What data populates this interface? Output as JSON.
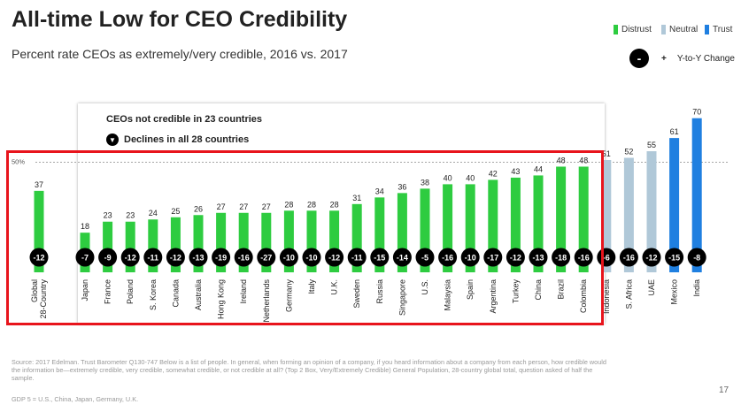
{
  "chart_data": {
    "type": "bar",
    "title": "All-time Low for CEO Credibility",
    "subtitle": "Percent rate CEOs as extremely/very credible, 2016 vs. 2017",
    "categories": [
      "Global 28-Country",
      "Japan",
      "France",
      "Poland",
      "S. Korea",
      "Canada",
      "Australia",
      "Hong Kong",
      "Ireland",
      "Netherlands",
      "Germany",
      "Italy",
      "U.K.",
      "Sweden",
      "Russia",
      "Singapore",
      "U.S.",
      "Malaysia",
      "Spain",
      "Argentina",
      "Turkey",
      "China",
      "Brazil",
      "Colombia",
      "Indonesia",
      "S. Africa",
      "UAE",
      "Mexico",
      "India"
    ],
    "values": [
      37,
      18,
      23,
      23,
      24,
      25,
      26,
      27,
      27,
      27,
      28,
      28,
      28,
      31,
      34,
      36,
      38,
      40,
      40,
      42,
      43,
      44,
      48,
      48,
      51,
      52,
      55,
      61,
      70
    ],
    "yoy_change": [
      -12,
      -7,
      -9,
      -12,
      -11,
      -12,
      -13,
      -19,
      -16,
      -27,
      -10,
      -10,
      -12,
      -11,
      -15,
      -14,
      -5,
      -16,
      -10,
      -17,
      -12,
      -13,
      -18,
      -16,
      -6,
      -16,
      -12,
      -15,
      -8
    ],
    "trust_level": [
      "distrust",
      "distrust",
      "distrust",
      "distrust",
      "distrust",
      "distrust",
      "distrust",
      "distrust",
      "distrust",
      "distrust",
      "distrust",
      "distrust",
      "distrust",
      "distrust",
      "distrust",
      "distrust",
      "distrust",
      "distrust",
      "distrust",
      "distrust",
      "distrust",
      "distrust",
      "distrust",
      "distrust",
      "neutral",
      "neutral",
      "neutral",
      "trust",
      "trust"
    ],
    "reference_line": {
      "value": 50,
      "label": "50%"
    },
    "ylim": [
      0,
      75
    ],
    "xlabel": "",
    "ylabel": "",
    "legend": [
      {
        "key": "distrust",
        "label": "Distrust",
        "color": "#2ecc40"
      },
      {
        "key": "neutral",
        "label": "Neutral",
        "color": "#b0c8d8"
      },
      {
        "key": "trust",
        "label": "Trust",
        "color": "#1f7fe0"
      }
    ],
    "legend_position": "top-right",
    "yoy_legend": {
      "symbol": "-",
      "plus": "+",
      "label": "Y-to-Y Change"
    },
    "callouts": {
      "not_credible": "CEOs not credible in 23 countries",
      "declines": "Declines in all 28 countries",
      "declines_symbol": "▼"
    }
  },
  "footer": {
    "source": "Source: 2017 Edelman. Trust Barometer Q130-747 Below is a list of people. In general, when forming an opinion of a company, if you heard information about a company from each person, how credible would the information be—extremely credible, very credible, somewhat credible, or not credible at all? (Top 2 Box, Very/Extremely Credible) General Population, 28-country global total, question asked of half the sample.",
    "gdp_note": "GDP 5 = U.S., China, Japan, Germany, U.K.",
    "page_number": "17"
  },
  "colors": {
    "highlight_box": "#e8141c",
    "bubble": "#000000"
  }
}
